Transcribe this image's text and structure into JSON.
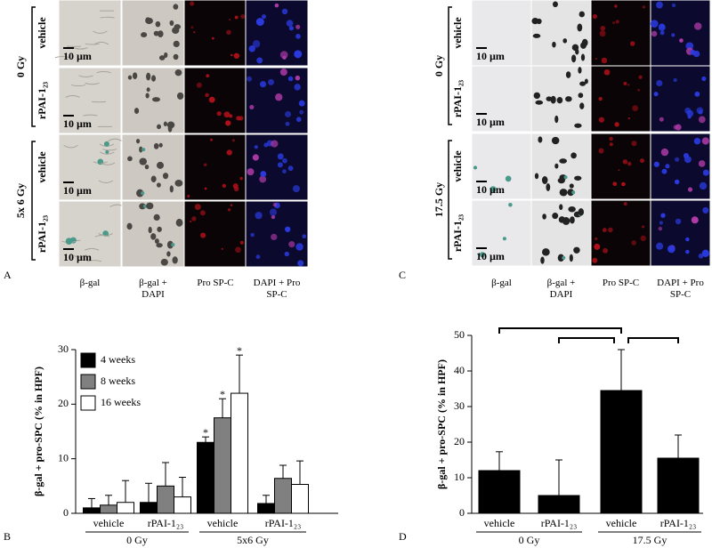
{
  "panel_labels": [
    "A",
    "B",
    "C",
    "D"
  ],
  "micrographs": [
    {
      "columns": [
        "β-gal",
        "β-gal + DAPI",
        "Pro SP-C",
        "DAPI + Pro SP-C"
      ],
      "groups": [
        {
          "label": "0 Gy",
          "rows": [
            "vehicle",
            "rPAI-1₂₃"
          ]
        },
        {
          "label": "5x 6 Gy",
          "rows": [
            "vehicle",
            "rPAI-1₂₃"
          ]
        }
      ],
      "scale_bar": "10 µm"
    },
    {
      "columns": [
        "β-gal",
        "β-gal + DAPI",
        "Pro SP-C",
        "DAPI + Pro SP-C"
      ],
      "groups": [
        {
          "label": "0 Gy",
          "rows": [
            "vehicle",
            "rPAI-1₂₃"
          ]
        },
        {
          "label": "17.5 Gy",
          "rows": [
            "vehicle",
            "rPAI-1₂₃"
          ]
        }
      ],
      "scale_bar": "10 µm"
    }
  ],
  "chart_data": [
    {
      "type": "bar",
      "y_label": "β-gal + pro-SPC (% in HPF)",
      "categories": [
        "vehicle",
        "rPAI-1₂₃",
        "vehicle",
        "rPAI-1₂₃"
      ],
      "group_labels": [
        "0 Gy",
        "5x6 Gy"
      ],
      "series": [
        {
          "name": "4 weeks",
          "color": "#000000",
          "values": [
            1,
            2,
            13,
            1.8
          ],
          "errors": [
            1.7,
            3.5,
            1,
            1.5
          ],
          "significance": [
            null,
            null,
            "*",
            null
          ]
        },
        {
          "name": "8 weeks",
          "color": "#808080",
          "values": [
            1.5,
            5,
            17.5,
            6.4
          ],
          "errors": [
            1.8,
            4.3,
            3.5,
            2.4
          ],
          "significance": [
            null,
            null,
            "*",
            null
          ]
        },
        {
          "name": "16 weeks",
          "color": "#ffffff",
          "values": [
            2,
            3,
            22,
            5.3
          ],
          "errors": [
            4,
            3.6,
            7,
            4.3
          ],
          "significance": [
            null,
            null,
            "*",
            null
          ]
        }
      ],
      "ylim": [
        0,
        30
      ],
      "yticks": [
        0,
        10,
        20,
        30
      ],
      "legend": "upper left"
    },
    {
      "type": "bar",
      "y_label": "β-gal + pro-SPC (% in HPF)",
      "categories": [
        "vehicle",
        "rPAI-1₂₃",
        "vehicle",
        "rPAI-1₂₃"
      ],
      "group_labels": [
        "0 Gy",
        "17.5 Gy"
      ],
      "values": [
        12,
        5,
        34.5,
        15.5
      ],
      "errors": [
        5.3,
        10,
        11.5,
        6.5
      ],
      "color": "#000000",
      "ylim": [
        0,
        50
      ],
      "yticks": [
        0,
        10,
        20,
        30,
        40,
        50
      ]
    }
  ]
}
